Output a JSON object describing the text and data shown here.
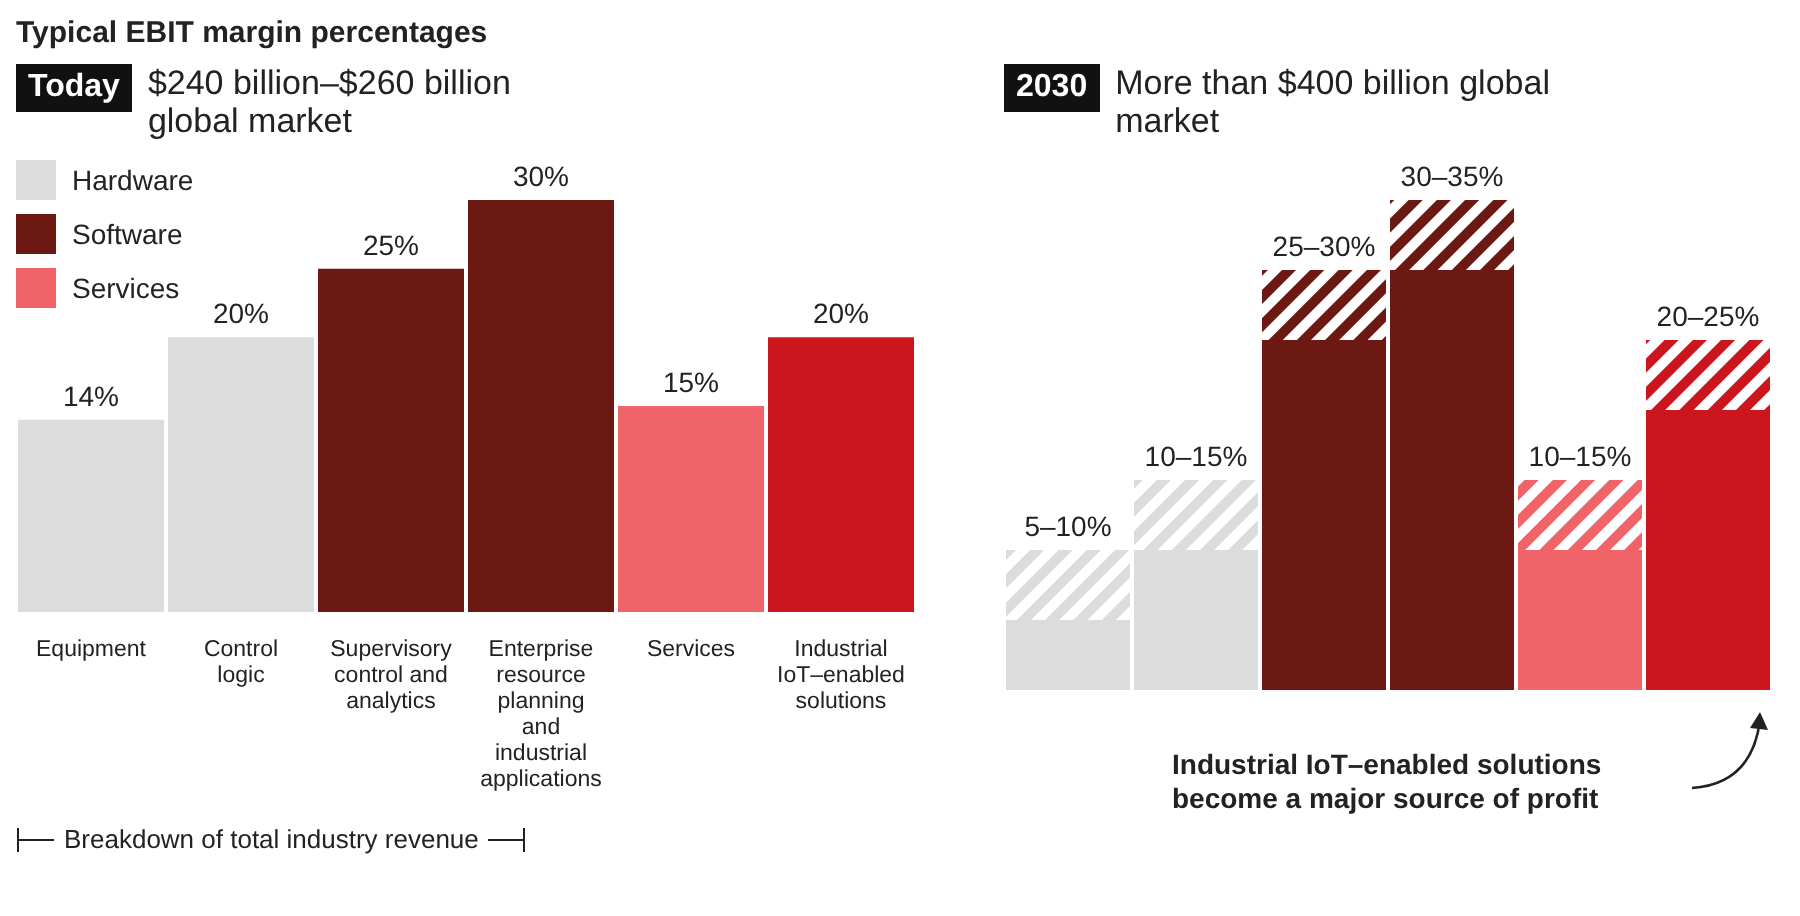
{
  "chart_data": [
    {
      "type": "bar",
      "title": "Typical EBIT margin percentages",
      "subtitle": "$240 billion–$260 billion global market",
      "annotations": [
        "Today",
        "Breakdown of total industry revenue"
      ],
      "categories": [
        "Equipment",
        "Control logic",
        "Supervisory control and analytics",
        "Enterprise resource planning and industrial applications",
        "Services",
        "Industrial IoT–enabled solutions"
      ],
      "stacked": true,
      "legend": "top left",
      "series": [
        {
          "name": "Hardware",
          "color": "#dcdcdc",
          "values": [
            14,
            20,
            null,
            null,
            null,
            null
          ],
          "value_labels": [
            "14%",
            "20%",
            null,
            null,
            null,
            null
          ]
        },
        {
          "name": "Software",
          "color": "#6b1912",
          "values": [
            null,
            null,
            25,
            30,
            null,
            null
          ],
          "value_labels": [
            null,
            null,
            "25%",
            "30%",
            null,
            null
          ]
        },
        {
          "name": "Services",
          "color": "#ef6369",
          "values": [
            null,
            null,
            null,
            null,
            15,
            null
          ],
          "value_labels": [
            null,
            null,
            null,
            null,
            "15%",
            null
          ]
        },
        {
          "color": "#cc161e",
          "values": [
            null,
            null,
            null,
            null,
            null,
            20
          ],
          "value_labels": [
            null,
            null,
            null,
            null,
            null,
            "20%"
          ]
        }
      ]
    },
    {
      "type": "bar",
      "subtitle": "More than $400 billion global market",
      "annotations": [
        "2030",
        "Industrial IoT–enabled solutions become a major source of profit"
      ],
      "categories": [
        null,
        null,
        null,
        null,
        null,
        null
      ],
      "stacked": true,
      "series": [
        {
          "colors": [
            "#dcdcdc",
            "#dcdcdc",
            "#6b1912",
            "#6b1912",
            "#ef6369",
            "#cc161e"
          ],
          "values": [
            5,
            10,
            25,
            30,
            10,
            20
          ],
          "value_labels": [
            "5–10%",
            "10–15%",
            "25–30%",
            "30–35%",
            "10–15%",
            "20–25%"
          ]
        },
        {
          "colors": [
            "#dcdcdc",
            "#dcdcdc",
            "#6b1912",
            "#6b1912",
            "#ef6369",
            "#cc161e"
          ],
          "values": [
            5,
            5,
            5,
            5,
            5,
            5
          ]
        }
      ]
    }
  ]
}
